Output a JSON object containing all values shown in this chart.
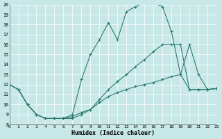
{
  "xlabel": "Humidex (Indice chaleur)",
  "bg_color": "#c8e8e8",
  "line_color": "#2a7a6a",
  "xlim": [
    0,
    23
  ],
  "ylim": [
    8,
    20
  ],
  "yticks": [
    8,
    9,
    10,
    11,
    12,
    13,
    14,
    15,
    16,
    17,
    18,
    19,
    20
  ],
  "xticks": [
    0,
    1,
    2,
    3,
    4,
    5,
    6,
    7,
    8,
    9,
    10,
    11,
    12,
    13,
    14,
    15,
    16,
    17,
    18,
    19,
    20,
    21,
    22,
    23
  ],
  "line_top_x": [
    0,
    1,
    2,
    3,
    4,
    5,
    6,
    7,
    8,
    9,
    10,
    11,
    12,
    13,
    14,
    15,
    16,
    17,
    18,
    19,
    20,
    21,
    22,
    23
  ],
  "line_top_y": [
    12,
    11.5,
    10,
    9,
    8.6,
    8.6,
    8.6,
    9.0,
    12.5,
    15.0,
    16.5,
    18.2,
    16.5,
    19.3,
    19.8,
    20.2,
    20.2,
    19.8,
    17.3,
    13.0,
    16.0,
    13.0,
    11.5,
    11.6
  ],
  "line_mid_x": [
    0,
    1,
    2,
    3,
    4,
    5,
    6,
    7,
    8,
    9,
    10,
    11,
    12,
    13,
    14,
    15,
    16,
    17,
    18,
    19,
    20,
    21,
    22,
    23
  ],
  "line_mid_y": [
    12,
    11.5,
    10,
    9,
    8.6,
    8.6,
    8.6,
    8.8,
    9.2,
    9.5,
    10.5,
    11.5,
    12.3,
    13.0,
    13.8,
    14.5,
    15.3,
    16.0,
    16.0,
    16.0,
    11.5,
    11.5,
    11.5,
    11.6
  ],
  "line_bot_x": [
    0,
    1,
    2,
    3,
    4,
    5,
    6,
    7,
    8,
    9,
    10,
    11,
    12,
    13,
    14,
    15,
    16,
    17,
    18,
    19,
    20,
    21,
    22,
    23
  ],
  "line_bot_y": [
    12,
    11.5,
    10,
    9,
    8.6,
    8.6,
    8.6,
    8.6,
    9.0,
    9.5,
    10.2,
    10.8,
    11.2,
    11.5,
    11.8,
    12.0,
    12.2,
    12.5,
    12.8,
    13.0,
    11.5,
    11.5,
    11.5,
    11.6
  ]
}
